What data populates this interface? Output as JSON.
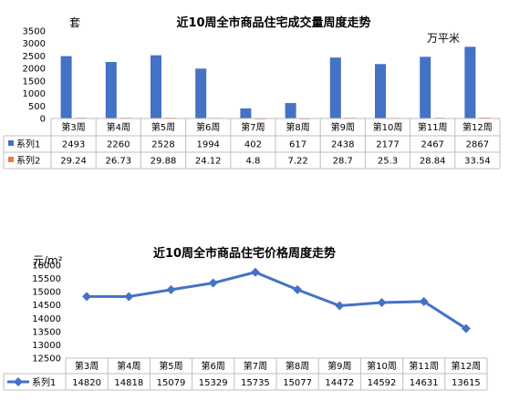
{
  "chart_data": [
    {
      "type": "bar",
      "title": "近10周全市商品住宅成交量周度走势",
      "left_unit": "套",
      "right_unit": "万平米",
      "categories": [
        "第3周",
        "第4周",
        "第5周",
        "第6周",
        "第7周",
        "第8周",
        "第9周",
        "第10周",
        "第11周",
        "第12周"
      ],
      "ylim": [
        0,
        3500
      ],
      "yticks": [
        "3500",
        "3000",
        "2500",
        "2000",
        "1500",
        "1000",
        "500",
        "0"
      ],
      "grid": false,
      "series": [
        {
          "name": "系列1",
          "color": "#4472C4",
          "values": [
            2493,
            2260,
            2528,
            1994,
            402,
            617,
            2438,
            2177,
            2467,
            2867
          ],
          "labels": [
            "2493",
            "2260",
            "2528",
            "1994",
            "402",
            "617",
            "2438",
            "2177",
            "2467",
            "2867"
          ]
        },
        {
          "name": "系列2",
          "color": "#ED7D31",
          "values": [
            29.24,
            26.73,
            29.88,
            24.12,
            4.8,
            7.22,
            28.7,
            25.3,
            28.84,
            33.54
          ],
          "labels": [
            "29.24",
            "26.73",
            "29.88",
            "24.12",
            "4.8",
            "7.22",
            "28.7",
            "25.3",
            "28.84",
            "33.54"
          ]
        }
      ]
    },
    {
      "type": "line",
      "title": "近10周全市商品住宅价格周度走势",
      "unit": "元/m²",
      "categories": [
        "第3周",
        "第4周",
        "第5周",
        "第6周",
        "第7周",
        "第8周",
        "第9周",
        "第10周",
        "第11周",
        "第12周"
      ],
      "ylim": [
        12500,
        16000
      ],
      "yticks": [
        "16000",
        "15500",
        "15000",
        "14500",
        "14000",
        "13500",
        "13000",
        "12500"
      ],
      "grid": false,
      "series": [
        {
          "name": "系列1",
          "color": "#4472C4",
          "values": [
            14820,
            14818,
            15079,
            15329,
            15735,
            15077,
            14472,
            14592,
            14631,
            13615
          ],
          "labels": [
            "14820",
            "14818",
            "15079",
            "15329",
            "15735",
            "15077",
            "14472",
            "14592",
            "14631",
            "13615"
          ]
        }
      ]
    }
  ]
}
